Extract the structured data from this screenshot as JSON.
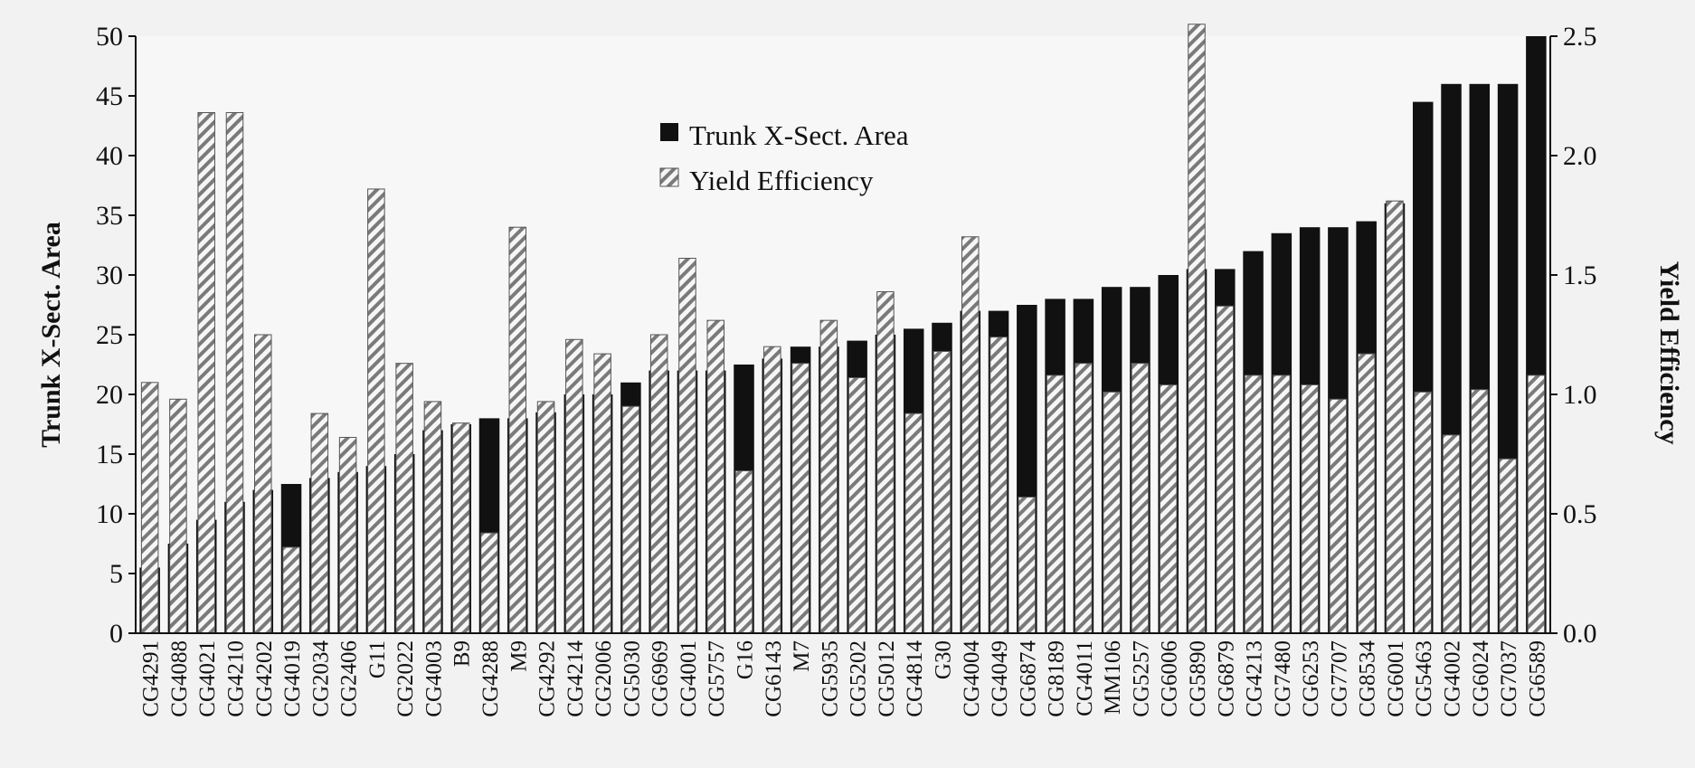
{
  "chart_data": {
    "type": "bar",
    "ylabel": "Trunk X-Sect. Area",
    "y2label": "Yield Efficiency",
    "ylim": [
      0,
      50
    ],
    "y2lim": [
      0,
      2.5
    ],
    "yticks": [
      "0",
      "5",
      "10",
      "15",
      "20",
      "25",
      "30",
      "35",
      "40",
      "45",
      "50"
    ],
    "y2ticks": [
      "0.0",
      "0.5",
      "1.0",
      "1.5",
      "2.0",
      "2.5"
    ],
    "legend_position": "top-center",
    "grid": false,
    "categories": [
      "CG4291",
      "CG4088",
      "CG4021",
      "CG4210",
      "CG4202",
      "CG4019",
      "CG2034",
      "CG2406",
      "G11",
      "CG2022",
      "CG4003",
      "B9",
      "CG4288",
      "M9",
      "CG4292",
      "CG4214",
      "CG2006",
      "CG5030",
      "CG6969",
      "CG4001",
      "CG5757",
      "G16",
      "CG6143",
      "M7",
      "CG5935",
      "CG5202",
      "CG5012",
      "CG4814",
      "G30",
      "CG4004",
      "CG4049",
      "CG6874",
      "CG8189",
      "CG4011",
      "MM106",
      "CG5257",
      "CG6006",
      "CG5890",
      "CG6879",
      "CG4213",
      "CG7480",
      "CG6253",
      "CG7707",
      "CG8534",
      "CG6001",
      "CG5463",
      "CG4002",
      "CG6024",
      "CG7037",
      "CG6589"
    ],
    "series": [
      {
        "name": "Trunk X-Sect. Area",
        "axis": "left",
        "color": "#111111",
        "values": [
          5.5,
          7.5,
          9.5,
          11.0,
          12.0,
          12.5,
          13.0,
          13.5,
          14.0,
          15.0,
          17.0,
          17.5,
          18.0,
          18.0,
          18.5,
          20.0,
          20.0,
          21.0,
          22.0,
          22.0,
          22.0,
          22.5,
          23.0,
          24.0,
          24.0,
          24.5,
          25.0,
          25.5,
          26.0,
          27.0,
          27.0,
          27.5,
          28.0,
          28.0,
          29.0,
          29.0,
          30.0,
          30.5,
          30.5,
          32.0,
          33.5,
          34.0,
          34.0,
          34.5,
          36.0,
          44.5,
          46.0,
          46.0,
          46.0,
          50.0
        ]
      },
      {
        "name": "Yield Efficiency",
        "axis": "right",
        "color": "#888888",
        "pattern": "hatched",
        "values": [
          1.05,
          0.98,
          2.18,
          2.18,
          1.25,
          0.36,
          0.92,
          0.82,
          1.86,
          1.13,
          0.97,
          0.88,
          0.42,
          1.7,
          0.97,
          1.23,
          1.17,
          0.95,
          1.25,
          1.57,
          1.31,
          0.68,
          1.2,
          1.13,
          1.31,
          1.07,
          1.43,
          0.92,
          1.18,
          1.66,
          1.24,
          0.57,
          1.08,
          1.13,
          1.01,
          1.13,
          1.04,
          2.55,
          1.37,
          1.08,
          1.08,
          1.04,
          0.98,
          1.17,
          1.81,
          1.01,
          0.83,
          1.02,
          0.73,
          1.08
        ]
      }
    ]
  }
}
